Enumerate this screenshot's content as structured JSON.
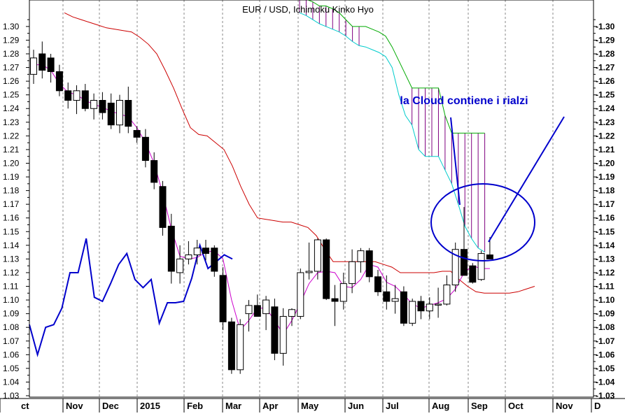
{
  "chart_data": {
    "type": "candlestick",
    "title": "EUR / USD, Ichimoku Kinko Hyo",
    "annotation": "la Cloud contiene i rialzi",
    "ylim": [
      1.02,
      1.31
    ],
    "y_ticks": [
      1.03,
      1.04,
      1.05,
      1.06,
      1.07,
      1.08,
      1.09,
      1.1,
      1.11,
      1.12,
      1.13,
      1.14,
      1.15,
      1.16,
      1.17,
      1.18,
      1.19,
      1.2,
      1.21,
      1.22,
      1.23,
      1.24,
      1.25,
      1.26,
      1.27,
      1.28,
      1.29,
      1.3
    ],
    "y_tick_labels_left": [
      "1.03",
      "1.04",
      "1.05",
      "1.06",
      "1.07",
      "1.08",
      "1.09",
      "1.10",
      "1.11",
      "1.12",
      "1.13",
      "1.14",
      "1.15",
      "1.16",
      "1.17",
      "1.18",
      "1.19",
      "1.20",
      "1.21",
      "1.22",
      "1.23",
      "1.24",
      "1.25",
      "1.26",
      "1.27",
      "1.28",
      "1.29",
      "1.30"
    ],
    "y_tick_labels_right": [
      "-1.03",
      "-1.04",
      "-1.05",
      "-1.06",
      "-1.07",
      "-1.08",
      "-1.09",
      "-1.10",
      "-1.11",
      "-1.12",
      "-1.13",
      "-1.14",
      "-1.15",
      "-1.16",
      "-1.17",
      "-1.18",
      "-1.19",
      "-1.20",
      "-1.21",
      "-1.22",
      "-1.23",
      "-1.24",
      "-1.25",
      "-1.26",
      "-1.27",
      "-1.28",
      "-1.29",
      "-1.30"
    ],
    "x_range_weeks": [
      0,
      42
    ],
    "months": [
      {
        "label": "ct",
        "week": 0
      },
      {
        "label": "Nov",
        "week": 3.5
      },
      {
        "label": "Dec",
        "week": 7.9
      },
      {
        "label": "2015",
        "week": 12.2
      },
      {
        "label": "Feb",
        "week": 16.6
      },
      {
        "label": "Mar",
        "week": 20.9
      },
      {
        "label": "Apr",
        "week": 24.7
      },
      {
        "label": "May",
        "week": 29.0
      },
      {
        "label": "Jun",
        "week": 33.4
      },
      {
        "label": "Jul",
        "week": 37.2
      },
      {
        "label": "Aug",
        "week": 41.6
      },
      {
        "label": "Sep",
        "week": 45.9
      },
      {
        "label": "Oct",
        "week": 49.8
      },
      {
        "label": "Nov",
        "week": 54.1
      },
      {
        "label": "D",
        "week": 56.9
      }
    ],
    "candles": [
      {
        "o": 1.265,
        "h": 1.283,
        "l": 1.258,
        "c": 1.277
      },
      {
        "o": 1.28,
        "h": 1.289,
        "l": 1.262,
        "c": 1.268
      },
      {
        "o": 1.277,
        "h": 1.28,
        "l": 1.259,
        "c": 1.267
      },
      {
        "o": 1.267,
        "h": 1.272,
        "l": 1.249,
        "c": 1.253
      },
      {
        "o": 1.253,
        "h": 1.259,
        "l": 1.24,
        "c": 1.246
      },
      {
        "o": 1.246,
        "h": 1.257,
        "l": 1.236,
        "c": 1.253
      },
      {
        "o": 1.253,
        "h": 1.258,
        "l": 1.238,
        "c": 1.24
      },
      {
        "o": 1.24,
        "h": 1.251,
        "l": 1.232,
        "c": 1.246
      },
      {
        "o": 1.246,
        "h": 1.252,
        "l": 1.232,
        "c": 1.237
      },
      {
        "o": 1.244,
        "h": 1.251,
        "l": 1.225,
        "c": 1.228
      },
      {
        "o": 1.228,
        "h": 1.25,
        "l": 1.222,
        "c": 1.246
      },
      {
        "o": 1.246,
        "h": 1.256,
        "l": 1.222,
        "c": 1.227
      },
      {
        "o": 1.224,
        "h": 1.227,
        "l": 1.215,
        "c": 1.219
      },
      {
        "o": 1.219,
        "h": 1.225,
        "l": 1.197,
        "c": 1.202
      },
      {
        "o": 1.202,
        "h": 1.208,
        "l": 1.181,
        "c": 1.186
      },
      {
        "o": 1.183,
        "h": 1.187,
        "l": 1.147,
        "c": 1.153
      },
      {
        "o": 1.154,
        "h": 1.163,
        "l": 1.112,
        "c": 1.121
      },
      {
        "o": 1.12,
        "h": 1.14,
        "l": 1.112,
        "c": 1.13
      },
      {
        "o": 1.13,
        "h": 1.143,
        "l": 1.126,
        "c": 1.133
      },
      {
        "o": 1.133,
        "h": 1.144,
        "l": 1.126,
        "c": 1.138
      },
      {
        "o": 1.138,
        "h": 1.144,
        "l": 1.129,
        "c": 1.134
      },
      {
        "o": 1.138,
        "h": 1.14,
        "l": 1.117,
        "c": 1.121
      },
      {
        "o": 1.118,
        "h": 1.124,
        "l": 1.078,
        "c": 1.084
      },
      {
        "o": 1.084,
        "h": 1.087,
        "l": 1.046,
        "c": 1.049
      },
      {
        "o": 1.049,
        "h": 1.086,
        "l": 1.046,
        "c": 1.082
      },
      {
        "o": 1.09,
        "h": 1.1,
        "l": 1.077,
        "c": 1.096
      },
      {
        "o": 1.096,
        "h": 1.104,
        "l": 1.088,
        "c": 1.088
      },
      {
        "o": 1.09,
        "h": 1.103,
        "l": 1.078,
        "c": 1.1
      },
      {
        "o": 1.095,
        "h": 1.101,
        "l": 1.056,
        "c": 1.061
      },
      {
        "o": 1.061,
        "h": 1.094,
        "l": 1.052,
        "c": 1.088
      },
      {
        "o": 1.088,
        "h": 1.094,
        "l": 1.081,
        "c": 1.093
      },
      {
        "o": 1.088,
        "h": 1.123,
        "l": 1.086,
        "c": 1.12
      },
      {
        "o": 1.12,
        "h": 1.142,
        "l": 1.115,
        "c": 1.121
      },
      {
        "o": 1.121,
        "h": 1.145,
        "l": 1.115,
        "c": 1.144
      },
      {
        "o": 1.144,
        "h": 1.145,
        "l": 1.1,
        "c": 1.101
      },
      {
        "o": 1.101,
        "h": 1.111,
        "l": 1.081,
        "c": 1.099
      },
      {
        "o": 1.099,
        "h": 1.12,
        "l": 1.093,
        "c": 1.112
      },
      {
        "o": 1.112,
        "h": 1.137,
        "l": 1.105,
        "c": 1.128
      },
      {
        "o": 1.128,
        "h": 1.138,
        "l": 1.12,
        "c": 1.136
      },
      {
        "o": 1.136,
        "h": 1.138,
        "l": 1.113,
        "c": 1.117
      },
      {
        "o": 1.117,
        "h": 1.122,
        "l": 1.103,
        "c": 1.106
      },
      {
        "o": 1.106,
        "h": 1.118,
        "l": 1.093,
        "c": 1.099
      },
      {
        "o": 1.099,
        "h": 1.111,
        "l": 1.09,
        "c": 1.101
      },
      {
        "o": 1.106,
        "h": 1.11,
        "l": 1.081,
        "c": 1.083
      },
      {
        "o": 1.083,
        "h": 1.101,
        "l": 1.081,
        "c": 1.099
      },
      {
        "o": 1.099,
        "h": 1.103,
        "l": 1.086,
        "c": 1.092
      },
      {
        "o": 1.092,
        "h": 1.102,
        "l": 1.086,
        "c": 1.097
      },
      {
        "o": 1.097,
        "h": 1.109,
        "l": 1.087,
        "c": 1.097
      },
      {
        "o": 1.097,
        "h": 1.118,
        "l": 1.096,
        "c": 1.111
      },
      {
        "o": 1.111,
        "h": 1.142,
        "l": 1.106,
        "c": 1.137
      },
      {
        "o": 1.137,
        "h": 1.168,
        "l": 1.118,
        "c": 1.118
      },
      {
        "o": 1.125,
        "h": 1.127,
        "l": 1.112,
        "c": 1.113
      },
      {
        "o": 1.115,
        "h": 1.136,
        "l": 1.114,
        "c": 1.134
      },
      {
        "o": 1.133,
        "h": 1.146,
        "l": 1.13,
        "c": 1.13
      }
    ],
    "tenkan_sen": [
      1.272,
      1.272,
      1.268,
      1.258,
      1.252,
      1.25,
      1.246,
      1.243,
      1.241,
      1.238,
      1.236,
      1.234,
      1.226,
      1.215,
      1.2,
      1.178,
      1.152,
      1.132,
      1.13,
      1.131,
      1.135,
      1.136,
      1.13,
      1.1,
      1.078,
      1.085,
      1.094,
      1.094,
      1.085,
      1.075,
      1.085,
      1.098,
      1.112,
      1.12,
      1.121,
      1.12,
      1.11,
      1.109,
      1.115,
      1.126,
      1.124,
      1.113,
      1.11,
      1.104,
      1.097,
      1.094,
      1.096,
      1.098,
      1.101,
      1.108,
      1.12,
      1.125,
      1.123,
      1.123
    ],
    "kijun_sen": [
      1.31,
      1.307,
      1.305,
      1.303,
      1.301,
      1.299,
      1.298,
      1.297,
      1.296,
      1.292,
      1.287,
      1.28,
      1.268,
      1.255,
      1.24,
      1.226,
      1.221,
      1.22,
      1.215,
      1.21,
      1.198,
      1.183,
      1.17,
      1.16,
      1.159,
      1.158,
      1.157,
      1.157,
      1.155,
      1.153,
      1.147,
      1.137,
      1.128,
      1.128,
      1.128,
      1.128,
      1.128,
      1.128,
      1.126,
      1.124,
      1.12,
      1.12,
      1.12,
      1.12,
      1.12,
      1.121,
      1.121,
      1.115,
      1.11,
      1.106,
      1.105,
      1.105,
      1.105,
      1.105,
      1.106,
      1.108,
      1.11
    ],
    "chikou_span": [
      1.082,
      1.06,
      1.08,
      1.082,
      1.094,
      1.12,
      1.12,
      1.145,
      1.102,
      1.099,
      1.112,
      1.126,
      1.134,
      1.115,
      1.109,
      1.115,
      1.083,
      1.098,
      1.098,
      1.099,
      1.116,
      1.14,
      1.123,
      1.128,
      1.133,
      1.13
    ],
    "senkou_span_a": {
      "start_week": 18.5,
      "values": [
        1.31,
        1.308,
        1.305,
        1.302,
        1.3,
        1.298,
        1.296,
        1.293,
        1.289,
        1.286,
        1.285,
        1.283,
        1.281,
        1.278,
        1.27,
        1.25,
        1.235,
        1.228,
        1.21,
        1.205,
        1.205,
        1.205,
        1.195,
        1.185,
        1.17,
        1.154,
        1.145,
        1.138,
        1.135
      ]
    },
    "senkou_span_b": {
      "start_week": 18.5,
      "values": [
        1.32,
        1.32,
        1.318,
        1.315,
        1.315,
        1.313,
        1.31,
        1.305,
        1.3,
        1.3,
        1.3,
        1.298,
        1.296,
        1.293,
        1.285,
        1.275,
        1.265,
        1.255,
        1.255,
        1.255,
        1.255,
        1.255,
        1.235,
        1.222,
        1.222,
        1.222,
        1.222,
        1.222,
        1.222
      ]
    },
    "cloud_fill_color": "#800080",
    "colors": {
      "tenkan": "#cc00cc",
      "kijun": "#cc0000",
      "chikou": "#0000cc",
      "span_a": "#00cccc",
      "span_b": "#00aa00",
      "candle_fill": "#000000",
      "annotation": "#0000cc"
    },
    "ellipse_note": {
      "center_week": 46.7,
      "center_y": 1.149,
      "rx_weeks": 5.2,
      "ry": 0.029
    },
    "arrow": {
      "from": [
        46.6,
        1.136
      ],
      "to": [
        56.5,
        1.226
      ]
    },
    "arrow_to_cloud": {
      "from": [
        43.4,
        1.229
      ],
      "to": [
        45.4,
        1.164
      ]
    }
  }
}
